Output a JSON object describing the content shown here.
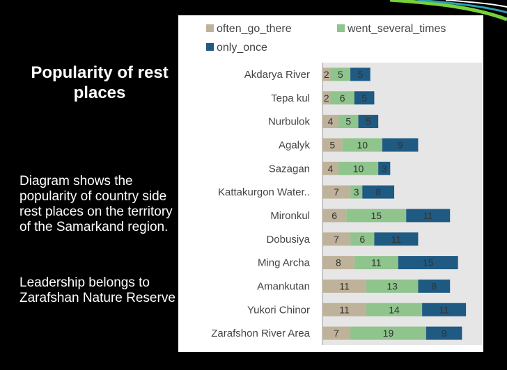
{
  "slide": {
    "title": "Popularity of rest places",
    "description": "Diagram  shows the popularity of country side rest places on the territory of the Samarkand region.",
    "leadership": "Leadership belongs to Zarafshan Nature Reserve"
  },
  "colors": {
    "often_go_there": "#bfb29a",
    "went_several_times": "#8fc48c",
    "only_once": "#1f5a82",
    "plot_bg": "#e6e6e6",
    "swoosh_green": "#77d23a",
    "swoosh_teal": "#2c9fb2"
  },
  "chart_data": {
    "type": "bar",
    "orientation": "horizontal",
    "stacked": true,
    "legend_position": "top",
    "grid": false,
    "categories": [
      "Akdarya River",
      "Tepa kul",
      "Nurbulok",
      "Agalyk",
      "Sazagan",
      "Kattakurgon Water..",
      "Mironkul",
      "Dobusiya",
      "Ming Archa",
      "Amankutan",
      "Yukori Chinor",
      "Zarafshon River Area"
    ],
    "series": [
      {
        "name": "often_go_there",
        "values": [
          2,
          2,
          4,
          5,
          4,
          7,
          6,
          7,
          8,
          11,
          11,
          7
        ]
      },
      {
        "name": "went_several_times",
        "values": [
          5,
          6,
          5,
          10,
          10,
          3,
          15,
          6,
          11,
          13,
          14,
          19
        ]
      },
      {
        "name": "only_once",
        "values": [
          5,
          5,
          5,
          9,
          3,
          8,
          11,
          11,
          15,
          8,
          11,
          9
        ]
      }
    ],
    "xlim": [
      0,
      40
    ]
  }
}
